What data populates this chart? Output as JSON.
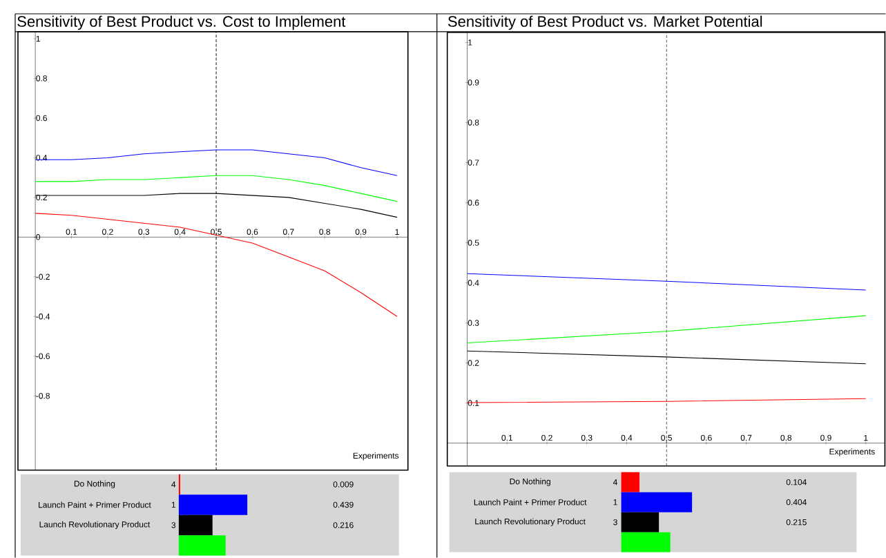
{
  "chart_data": [
    {
      "type": "line",
      "title": "Sensitivity of Best Product vs. Cost to Implement",
      "xlabel": "Experiments",
      "x": [
        0,
        0.1,
        0.2,
        0.3,
        0.4,
        0.5,
        0.6,
        0.7,
        0.8,
        0.9,
        1
      ],
      "series": [
        {
          "color": "#0000ff",
          "values": [
            0.39,
            0.39,
            0.4,
            0.42,
            0.43,
            0.44,
            0.44,
            0.42,
            0.4,
            0.35,
            0.31
          ]
        },
        {
          "color": "#00ff00",
          "values": [
            0.28,
            0.28,
            0.29,
            0.29,
            0.3,
            0.31,
            0.31,
            0.29,
            0.26,
            0.22,
            0.18
          ]
        },
        {
          "color": "#000000",
          "values": [
            0.21,
            0.21,
            0.21,
            0.21,
            0.22,
            0.22,
            0.21,
            0.2,
            0.17,
            0.14,
            0.1
          ]
        },
        {
          "color": "#ff0000",
          "values": [
            0.12,
            0.11,
            0.09,
            0.07,
            0.05,
            0.01,
            -0.03,
            -0.1,
            -0.17,
            -0.28,
            -0.4
          ]
        }
      ],
      "xlim": [
        -0.048,
        1.03
      ],
      "ylim": [
        -1.174,
        1.035
      ],
      "xticks": [
        0.1,
        0.2,
        0.3,
        0.4,
        0.5,
        0.6,
        0.7,
        0.8,
        0.9,
        1
      ],
      "yticks": [
        -0.8,
        -0.6,
        -0.4,
        -0.2,
        0,
        0.2,
        0.4,
        0.6,
        0.8,
        1
      ],
      "ref_lines": [
        {
          "axis": "x",
          "value": 0.5,
          "line_style": "dashed"
        }
      ]
    },
    {
      "type": "line",
      "title": "Sensitivity of Best Product vs. Market Potential",
      "xlabel": "Experiments",
      "x": [
        0,
        0.5,
        1
      ],
      "series": [
        {
          "color": "#0000ff",
          "values": [
            0.423,
            0.404,
            0.382
          ]
        },
        {
          "color": "#00ff00",
          "values": [
            0.25,
            0.279,
            0.318
          ]
        },
        {
          "color": "#000000",
          "values": [
            0.23,
            0.215,
            0.198
          ]
        },
        {
          "color": "#ff0000",
          "values": [
            0.101,
            0.104,
            0.111
          ]
        }
      ],
      "xlim": [
        -0.05,
        1.048
      ],
      "ylim": [
        -0.057,
        1.025
      ],
      "xticks": [
        0.1,
        0.2,
        0.3,
        0.4,
        0.5,
        0.6,
        0.7,
        0.8,
        0.9,
        1
      ],
      "yticks": [
        0.1,
        0.2,
        0.3,
        0.4,
        0.5,
        0.6,
        0.7,
        0.8,
        0.9,
        1
      ],
      "ref_lines": [
        {
          "axis": "x",
          "value": 0.5,
          "line_style": "dashed"
        }
      ]
    },
    {
      "type": "bar",
      "orientation": "horizontal",
      "categories": [
        "Do Nothing",
        "Launch Paint + Primer Product",
        "Launch Revolutionary Product",
        null
      ],
      "values": [
        0.009,
        0.439,
        0.216,
        0.3
      ],
      "colors": [
        "#ff0000",
        "#0000ff",
        "#000000",
        "#00ff00"
      ],
      "value_labels": [
        "0.009",
        "0.439",
        "0.216",
        null
      ],
      "annotations": [
        "4",
        "1",
        "3"
      ]
    },
    {
      "type": "bar",
      "orientation": "horizontal",
      "categories": [
        "Do Nothing",
        "Launch Paint + Primer Product",
        "Launch Revolutionary Product",
        null
      ],
      "values": [
        0.104,
        0.404,
        0.215,
        0.28
      ],
      "colors": [
        "#ff0000",
        "#0000ff",
        "#000000",
        "#00ff00"
      ],
      "value_labels": [
        "0.104",
        "0.404",
        "0.215",
        null
      ],
      "annotations": [
        "4",
        "1",
        "3"
      ]
    }
  ]
}
